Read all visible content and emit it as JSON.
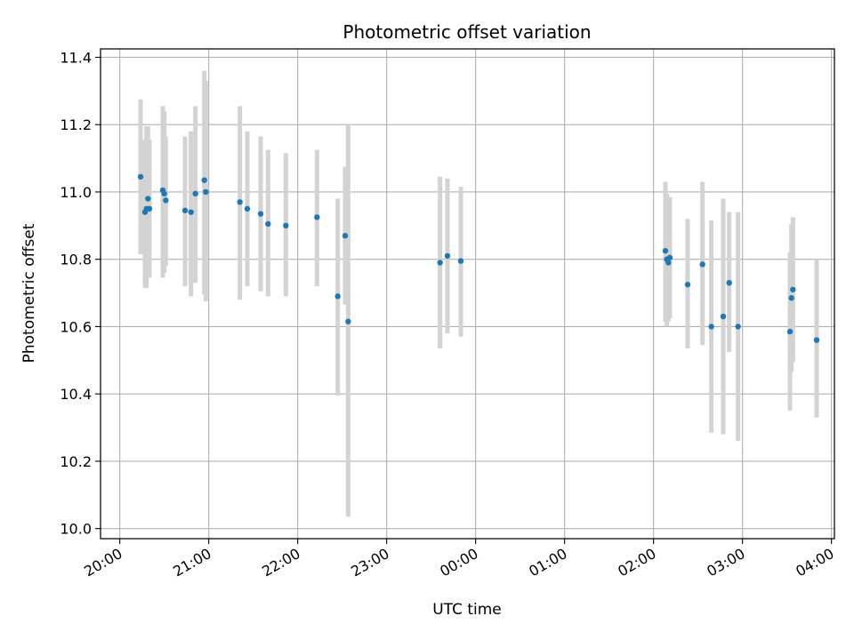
{
  "chart_data": {
    "type": "scatter",
    "title": "Photometric offset variation",
    "xlabel": "UTC time",
    "ylabel": "Photometric offset",
    "x_range_minutes": [
      -13,
      482
    ],
    "ylim": [
      9.97,
      11.425
    ],
    "y_ticks": [
      10.0,
      10.2,
      10.4,
      10.6,
      10.8,
      11.0,
      11.2,
      11.4
    ],
    "y_tick_labels": [
      "10.0",
      "10.2",
      "10.4",
      "10.6",
      "10.8",
      "11.0",
      "11.2",
      "11.4"
    ],
    "x_ticks": [
      0,
      60,
      120,
      180,
      240,
      300,
      360,
      420,
      480
    ],
    "x_tick_labels": [
      "20:00",
      "21:00",
      "22:00",
      "23:00",
      "00:00",
      "01:00",
      "02:00",
      "03:00",
      "04:00"
    ],
    "grid": true,
    "legend": "none",
    "colors": {
      "points": "#1f77b4",
      "errorbars": "#d3d3d3",
      "grid": "#b0b0b0"
    },
    "points": [
      {
        "t": "20:14",
        "y": 11.045,
        "lo": 10.815,
        "hi": 11.275
      },
      {
        "t": "20:17",
        "y": 10.94,
        "lo": 10.715,
        "hi": 11.155
      },
      {
        "t": "20:18",
        "y": 10.95,
        "lo": 10.715,
        "hi": 11.195
      },
      {
        "t": "20:19",
        "y": 10.98,
        "lo": 10.745,
        "hi": 11.195
      },
      {
        "t": "20:20",
        "y": 10.95,
        "lo": 10.745,
        "hi": 11.155
      },
      {
        "t": "20:29",
        "y": 11.005,
        "lo": 10.745,
        "hi": 11.255
      },
      {
        "t": "20:30",
        "y": 10.995,
        "lo": 10.76,
        "hi": 11.24
      },
      {
        "t": "20:31",
        "y": 10.975,
        "lo": 10.78,
        "hi": 11.165
      },
      {
        "t": "20:44",
        "y": 10.945,
        "lo": 10.72,
        "hi": 11.165
      },
      {
        "t": "20:48",
        "y": 10.94,
        "lo": 10.69,
        "hi": 11.18
      },
      {
        "t": "20:51",
        "y": 10.995,
        "lo": 10.73,
        "hi": 11.255
      },
      {
        "t": "20:57",
        "y": 11.035,
        "lo": 10.695,
        "hi": 11.36
      },
      {
        "t": "20:58",
        "y": 11.0,
        "lo": 10.675,
        "hi": 11.33
      },
      {
        "t": "21:21",
        "y": 10.97,
        "lo": 10.68,
        "hi": 11.255
      },
      {
        "t": "21:26",
        "y": 10.95,
        "lo": 10.72,
        "hi": 11.18
      },
      {
        "t": "21:35",
        "y": 10.935,
        "lo": 10.705,
        "hi": 11.165
      },
      {
        "t": "21:40",
        "y": 10.905,
        "lo": 10.69,
        "hi": 11.125
      },
      {
        "t": "21:52",
        "y": 10.9,
        "lo": 10.69,
        "hi": 11.115
      },
      {
        "t": "22:13",
        "y": 10.925,
        "lo": 10.72,
        "hi": 11.125
      },
      {
        "t": "22:27",
        "y": 10.69,
        "lo": 10.395,
        "hi": 10.98
      },
      {
        "t": "22:32",
        "y": 10.87,
        "lo": 10.665,
        "hi": 11.075
      },
      {
        "t": "22:34",
        "y": 10.615,
        "lo": 10.035,
        "hi": 11.2
      },
      {
        "t": "23:36",
        "y": 10.79,
        "lo": 10.535,
        "hi": 11.045
      },
      {
        "t": "23:41",
        "y": 10.81,
        "lo": 10.58,
        "hi": 11.04
      },
      {
        "t": "23:50",
        "y": 10.795,
        "lo": 10.57,
        "hi": 11.015
      },
      {
        "t": "02:08",
        "y": 10.825,
        "lo": 10.615,
        "hi": 11.03
      },
      {
        "t": "02:09",
        "y": 10.8,
        "lo": 10.6,
        "hi": 10.995
      },
      {
        "t": "02:10",
        "y": 10.79,
        "lo": 10.615,
        "hi": 10.965
      },
      {
        "t": "02:11",
        "y": 10.805,
        "lo": 10.625,
        "hi": 10.985
      },
      {
        "t": "02:23",
        "y": 10.725,
        "lo": 10.535,
        "hi": 10.92
      },
      {
        "t": "02:33",
        "y": 10.785,
        "lo": 10.545,
        "hi": 11.03
      },
      {
        "t": "02:39",
        "y": 10.6,
        "lo": 10.285,
        "hi": 10.915
      },
      {
        "t": "02:47",
        "y": 10.63,
        "lo": 10.28,
        "hi": 10.98
      },
      {
        "t": "02:51",
        "y": 10.73,
        "lo": 10.525,
        "hi": 10.94
      },
      {
        "t": "02:57",
        "y": 10.6,
        "lo": 10.26,
        "hi": 10.94
      },
      {
        "t": "03:32",
        "y": 10.585,
        "lo": 10.35,
        "hi": 10.82
      },
      {
        "t": "03:33",
        "y": 10.685,
        "lo": 10.465,
        "hi": 10.905
      },
      {
        "t": "03:34",
        "y": 10.71,
        "lo": 10.495,
        "hi": 10.925
      },
      {
        "t": "03:50",
        "y": 10.56,
        "lo": 10.33,
        "hi": 10.8
      }
    ]
  }
}
